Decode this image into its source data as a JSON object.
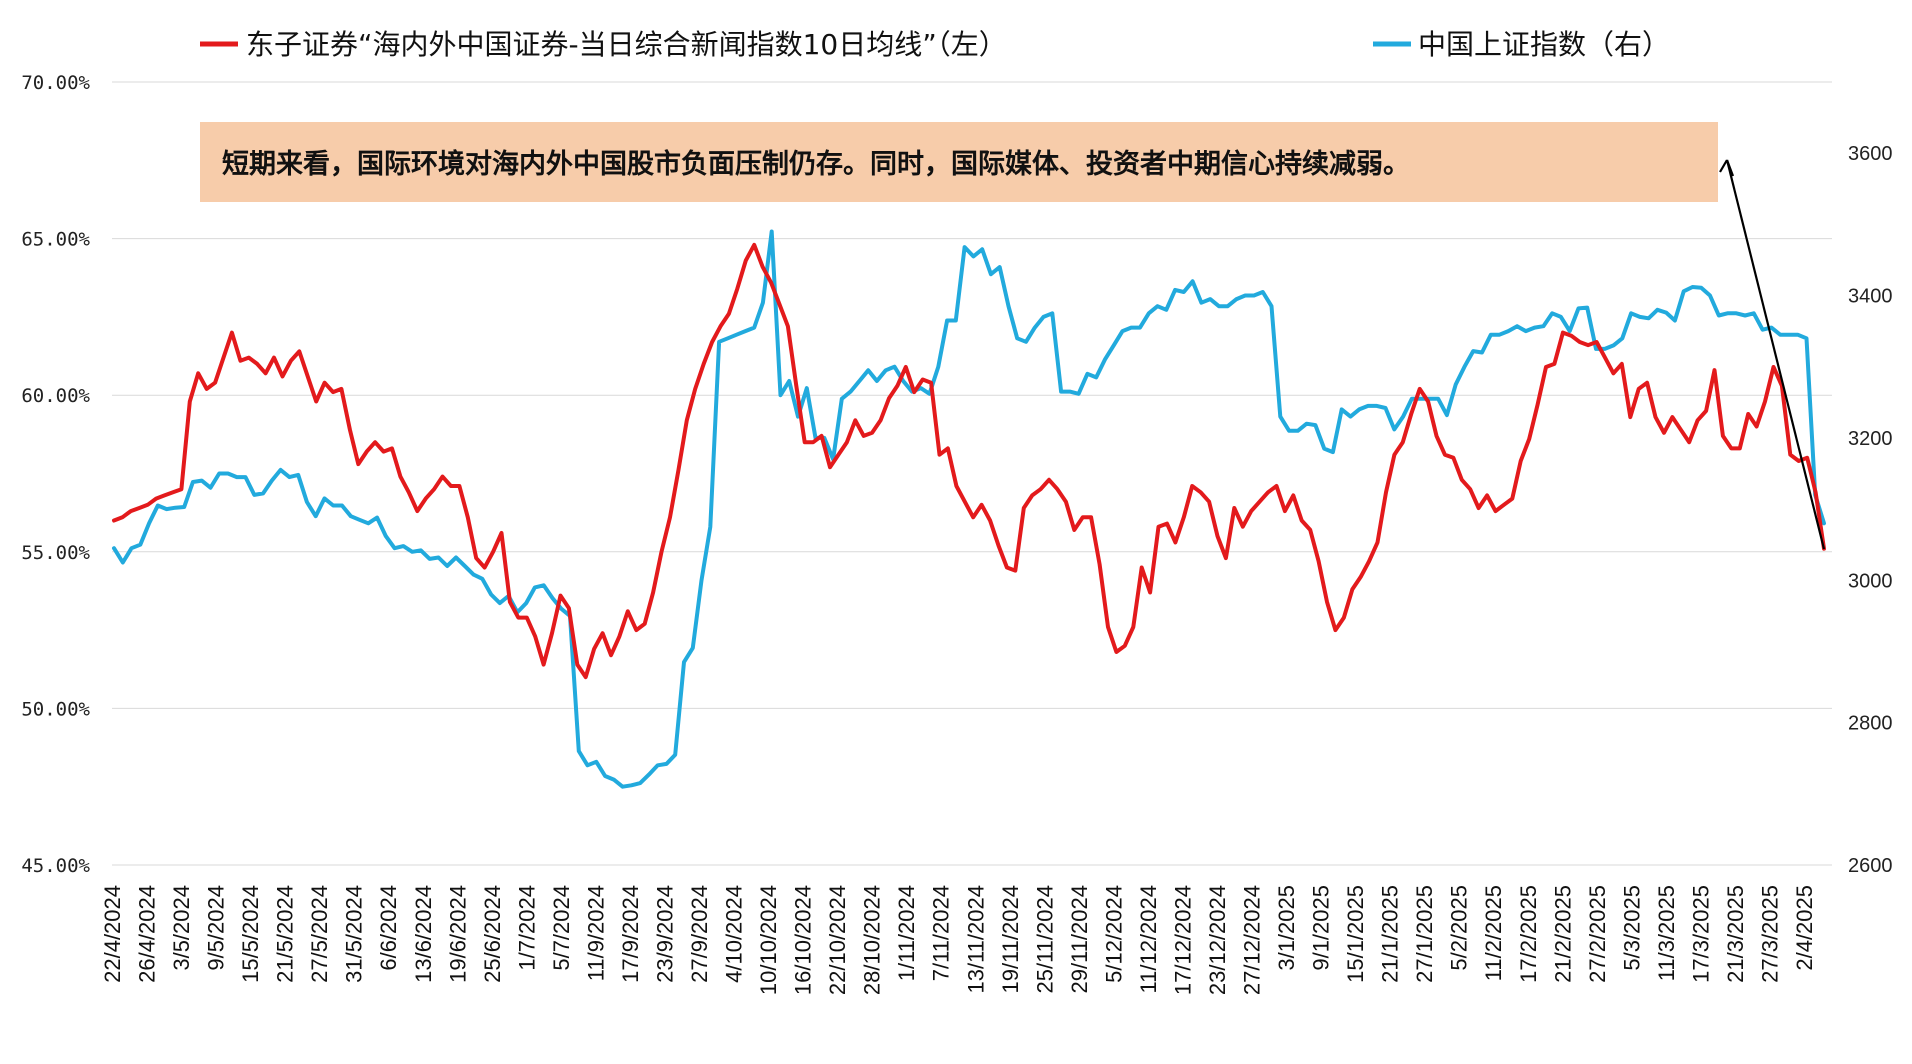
{
  "colors": {
    "series_left": "#e31a1c",
    "series_right": "#22aadd",
    "annotation_bg": "#f7ccaa",
    "grid": "#d9d9d9",
    "arrow": "#000000"
  },
  "chart_data": {
    "type": "line",
    "grid": true,
    "legend_placement": "top",
    "annotation": "短期来看，国际环境对海内外中国股市负面压制仍存。同时，国际媒体、投资者中期信心持续减弱。",
    "y_left": {
      "min": 45,
      "max": 70,
      "ticks": [
        45,
        50,
        55,
        60,
        65,
        70
      ],
      "tick_labels": [
        "45.00%",
        "50.00%",
        "55.00%",
        "60.00%",
        "65.00%",
        "70.00%"
      ]
    },
    "y_right": {
      "min": 2600,
      "max": 3700,
      "ticks": [
        2600,
        2800,
        3000,
        3200,
        3400,
        3600
      ],
      "tick_labels": [
        "2600",
        "2800",
        "3000",
        "3200",
        "3400",
        "3600"
      ]
    },
    "x_tick_labels": [
      "22/4/2024",
      "26/4/2024",
      "3/5/2024",
      "9/5/2024",
      "15/5/2024",
      "21/5/2024",
      "27/5/2024",
      "31/5/2024",
      "6/6/2024",
      "13/6/2024",
      "19/6/2024",
      "25/6/2024",
      "1/7/2024",
      "5/7/2024",
      "11/9/2024",
      "17/9/2024",
      "23/9/2024",
      "27/9/2024",
      "4/10/2024",
      "10/10/2024",
      "16/10/2024",
      "22/10/2024",
      "28/10/2024",
      "1/11/2024",
      "7/11/2024",
      "13/11/2024",
      "19/11/2024",
      "25/11/2024",
      "29/11/2024",
      "5/12/2024",
      "11/12/2024",
      "17/12/2024",
      "23/12/2024",
      "27/12/2024",
      "3/1/2025",
      "9/1/2025",
      "15/1/2025",
      "21/1/2025",
      "27/1/2025",
      "5/2/2025",
      "11/2/2025",
      "17/2/2025",
      "21/2/2025",
      "27/2/2025",
      "5/3/2025",
      "11/3/2025",
      "17/3/2025",
      "21/3/2025",
      "27/3/2025",
      "2/4/2025"
    ],
    "series": [
      {
        "name": "东子证券“海内外中国证券-当日综合新闻指数10日均线”（左）",
        "axis": "left",
        "values": [
          56.0,
          56.1,
          56.3,
          56.4,
          56.5,
          56.7,
          56.8,
          56.9,
          57.0,
          59.8,
          60.7,
          60.2,
          60.4,
          61.2,
          62.0,
          61.1,
          61.2,
          61.0,
          60.7,
          61.2,
          60.6,
          61.1,
          61.4,
          60.6,
          59.8,
          60.4,
          60.1,
          60.2,
          58.9,
          57.8,
          58.2,
          58.5,
          58.2,
          58.3,
          57.4,
          56.9,
          56.3,
          56.7,
          57.0,
          57.4,
          57.1,
          57.1,
          56.1,
          54.8,
          54.5,
          55.0,
          55.6,
          53.4,
          52.9,
          52.9,
          52.3,
          51.4,
          52.4,
          53.6,
          53.2,
          51.4,
          51.0,
          51.9,
          52.4,
          51.7,
          52.3,
          53.1,
          52.5,
          52.7,
          53.7,
          55.0,
          56.1,
          57.6,
          59.2,
          60.2,
          61.0,
          61.7,
          62.2,
          62.6,
          63.4,
          64.3,
          64.8,
          64.1,
          63.6,
          62.9,
          62.2,
          60.3,
          58.5,
          58.5,
          58.7,
          57.7,
          58.1,
          58.5,
          59.2,
          58.7,
          58.8,
          59.2,
          59.9,
          60.3,
          60.9,
          60.1,
          60.5,
          60.4,
          58.1,
          58.3,
          57.1,
          56.6,
          56.1,
          56.5,
          56.0,
          55.2,
          54.5,
          54.4,
          56.4,
          56.8,
          57.0,
          57.3,
          57.0,
          56.6,
          55.7,
          56.1,
          56.1,
          54.6,
          52.6,
          51.8,
          52.0,
          52.6,
          54.5,
          53.7,
          55.8,
          55.9,
          55.3,
          56.1,
          57.1,
          56.9,
          56.6,
          55.5,
          54.8,
          56.4,
          55.8,
          56.3,
          56.6,
          56.9,
          57.1,
          56.3,
          56.8,
          56.0,
          55.7,
          54.7,
          53.4,
          52.5,
          52.9,
          53.8,
          54.2,
          54.7,
          55.3,
          56.9,
          58.1,
          58.5,
          59.4,
          60.2,
          59.8,
          58.7,
          58.1,
          58.0,
          57.3,
          57.0,
          56.4,
          56.8,
          56.3,
          56.5,
          56.7,
          57.9,
          58.6,
          59.7,
          60.9,
          61.0,
          62.0,
          61.9,
          61.7,
          61.6,
          61.7,
          61.2,
          60.7,
          61.0,
          59.3,
          60.2,
          60.4,
          59.3,
          58.8,
          59.3,
          58.9,
          58.5,
          59.2,
          59.5,
          60.8,
          58.7,
          58.3,
          58.3,
          59.4,
          59.0,
          59.8,
          60.9,
          60.3,
          58.1,
          57.9,
          58.0,
          56.9,
          55.1
        ]
      },
      {
        "name": "中国上证指数（右）",
        "axis": "right",
        "values": [
          3045,
          3025,
          3045,
          3050,
          3080,
          3105,
          3100,
          3102,
          3103,
          3138,
          3140,
          3130,
          3150,
          3150,
          3145,
          3145,
          3120,
          3122,
          3140,
          3155,
          3145,
          3148,
          3110,
          3090,
          3115,
          3105,
          3105,
          3090,
          3085,
          3080,
          3088,
          3062,
          3045,
          3048,
          3040,
          3042,
          3030,
          3032,
          3020,
          3032,
          3020,
          3008,
          3002,
          2980,
          2968,
          2978,
          2955,
          2968,
          2990,
          2993,
          2975,
          2960,
          2950,
          2760,
          2740,
          2745,
          2725,
          2720,
          2710,
          2712,
          2715,
          2727,
          2740,
          2742,
          2755,
          2885,
          2905,
          3000,
          3075,
          3335,
          3340,
          3345,
          3350,
          3355,
          3390,
          3490,
          3260,
          3280,
          3230,
          3270,
          3200,
          3200,
          3170,
          3255,
          3265,
          3280,
          3295,
          3280,
          3295,
          3300,
          3280,
          3265,
          3270,
          3262,
          3300,
          3365,
          3365,
          3468,
          3455,
          3465,
          3430,
          3440,
          3385,
          3340,
          3335,
          3355,
          3370,
          3375,
          3265,
          3265,
          3262,
          3290,
          3285,
          3310,
          3330,
          3350,
          3355,
          3355,
          3375,
          3385,
          3380,
          3408,
          3405,
          3420,
          3390,
          3395,
          3385,
          3385,
          3395,
          3400,
          3400,
          3405,
          3385,
          3230,
          3210,
          3210,
          3220,
          3218,
          3185,
          3180,
          3240,
          3230,
          3240,
          3245,
          3245,
          3242,
          3212,
          3230,
          3255,
          3255,
          3255,
          3255,
          3232,
          3275,
          3300,
          3322,
          3320,
          3345,
          3345,
          3350,
          3357,
          3350,
          3355,
          3357,
          3375,
          3370,
          3350,
          3382,
          3383,
          3325,
          3325,
          3330,
          3340,
          3375,
          3370,
          3368,
          3380,
          3376,
          3365,
          3406,
          3412,
          3411,
          3400,
          3372,
          3375,
          3375,
          3372,
          3375,
          3352,
          3355,
          3345,
          3345,
          3345,
          3340,
          3120,
          3080
        ]
      }
    ]
  }
}
